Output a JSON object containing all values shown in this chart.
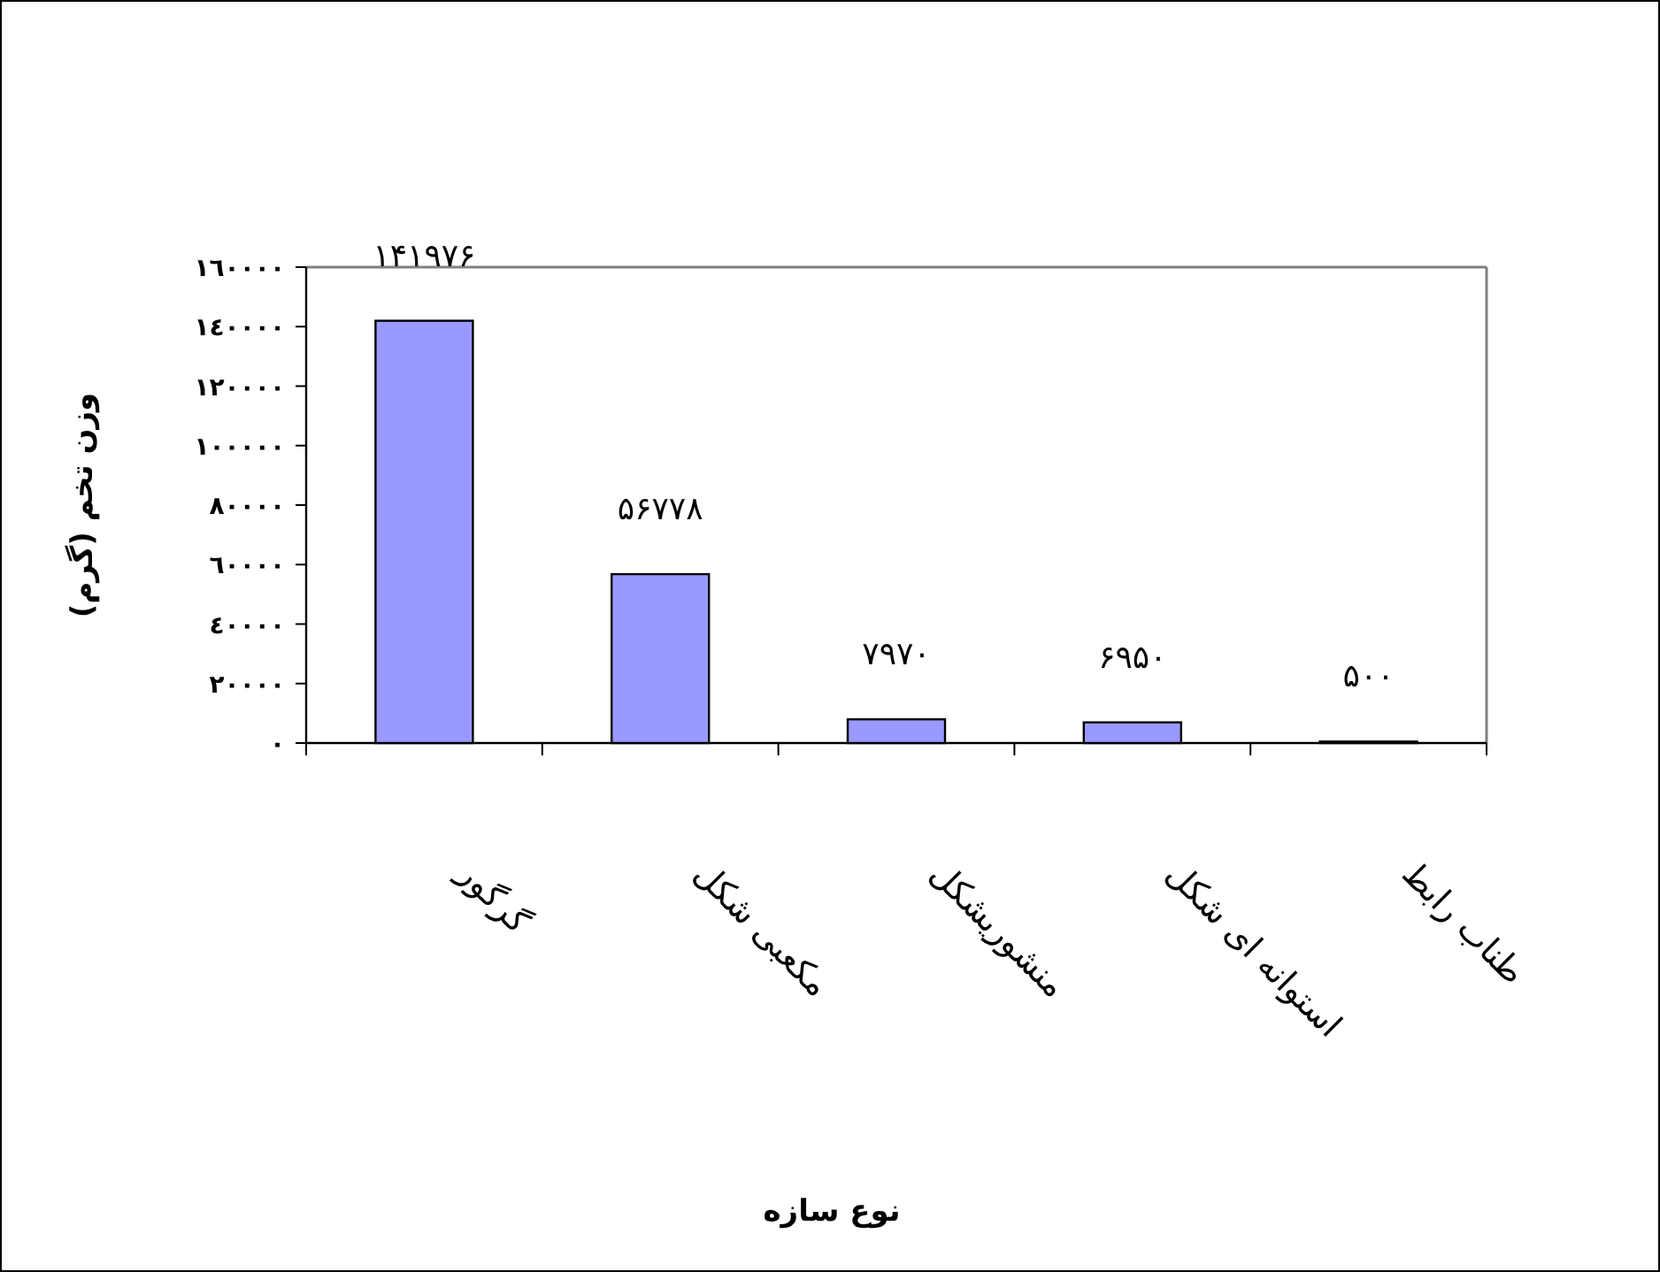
{
  "chart_data": {
    "type": "bar",
    "xlabel": "نوع سازه",
    "ylabel": "وزن تخم (گرم)",
    "categories": [
      "گرگور",
      "مکعبی شکل",
      "منشوریشکل",
      "استوانه ای شکل",
      "طناب رابط"
    ],
    "values": [
      141976,
      56778,
      7970,
      6950,
      500
    ],
    "value_labels": [
      "۱۴۱۹۷۶",
      "۵۶۷۷۸",
      "۷۹۷۰",
      "۶۹۵۰",
      "۵۰۰"
    ],
    "color": "#9999ff",
    "ylim": [
      0,
      160000
    ],
    "yticks": [
      {
        "value": 0,
        "label": "٠"
      },
      {
        "value": 20000,
        "label": "٢٠٠٠٠"
      },
      {
        "value": 40000,
        "label": "٤٠٠٠٠"
      },
      {
        "value": 60000,
        "label": "٦٠٠٠٠"
      },
      {
        "value": 80000,
        "label": "٨٠٠٠٠"
      },
      {
        "value": 100000,
        "label": "١٠٠٠٠٠"
      },
      {
        "value": 120000,
        "label": "١٢٠٠٠٠"
      },
      {
        "value": 140000,
        "label": "١٤٠٠٠٠"
      },
      {
        "value": 160000,
        "label": "١٦٠٠٠٠"
      }
    ]
  }
}
